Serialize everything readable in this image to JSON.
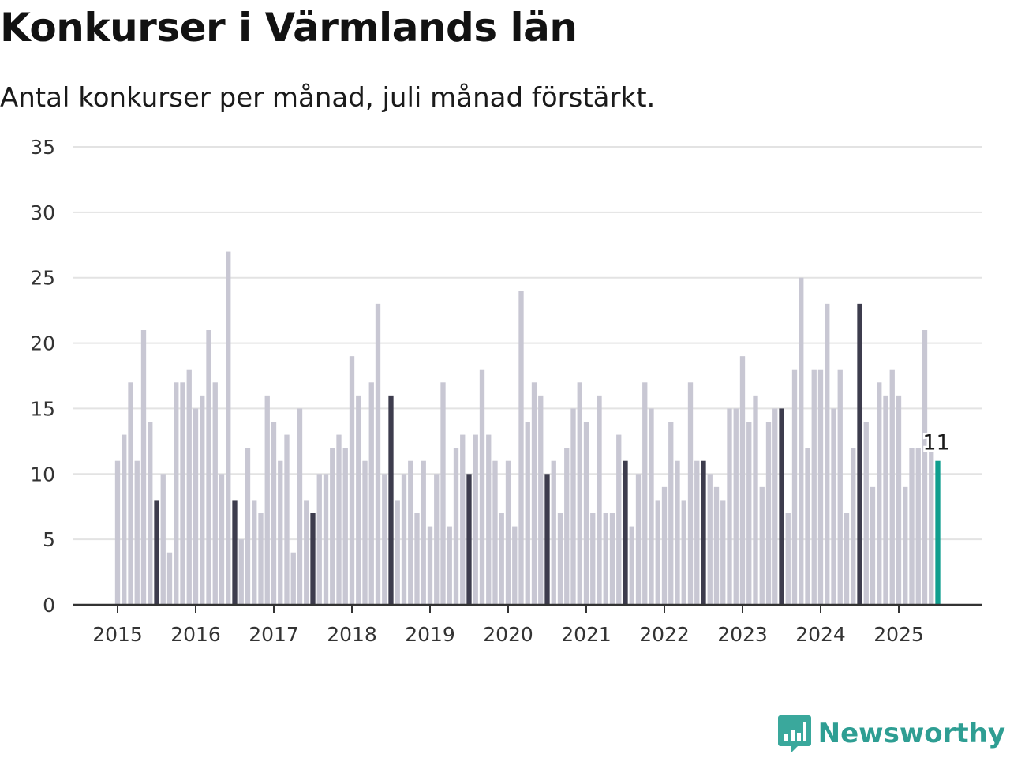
{
  "title": "Konkurser i Värmlands län",
  "subtitle": "Antal konkurser per månad, juli månad förstärkt.",
  "brand": {
    "name": "Newsworthy",
    "icon": "chart-bubble-icon"
  },
  "colors": {
    "normal": "#c8c7d3",
    "july": "#3d3c4d",
    "latest": "#0f9e8e",
    "grid": "#e3e3e3",
    "axis": "#333333"
  },
  "chart_data": {
    "type": "bar",
    "start": "2015-01",
    "ylim": [
      0,
      35
    ],
    "yticks": [
      "0",
      "5",
      "10",
      "15",
      "20",
      "25",
      "30",
      "35"
    ],
    "xticks": [
      "2015",
      "2016",
      "2017",
      "2018",
      "2019",
      "2020",
      "2021",
      "2022",
      "2023",
      "2024",
      "2025"
    ],
    "highlight_label": "11",
    "values": [
      11,
      13,
      17,
      11,
      21,
      14,
      8,
      10,
      4,
      17,
      17,
      18,
      15,
      16,
      21,
      17,
      10,
      27,
      8,
      5,
      12,
      8,
      7,
      16,
      14,
      11,
      13,
      4,
      15,
      8,
      7,
      10,
      10,
      12,
      13,
      12,
      19,
      16,
      11,
      17,
      23,
      10,
      16,
      8,
      10,
      11,
      7,
      11,
      6,
      10,
      17,
      6,
      12,
      13,
      10,
      13,
      18,
      13,
      11,
      7,
      11,
      6,
      24,
      14,
      17,
      16,
      10,
      11,
      7,
      12,
      15,
      17,
      14,
      7,
      16,
      7,
      7,
      13,
      11,
      6,
      10,
      17,
      15,
      8,
      9,
      14,
      11,
      8,
      17,
      11,
      11,
      10,
      9,
      8,
      15,
      15,
      19,
      14,
      16,
      9,
      14,
      15,
      15,
      7,
      18,
      25,
      12,
      18,
      18,
      23,
      15,
      18,
      7,
      12,
      23,
      14,
      9,
      17,
      16,
      18,
      16,
      9,
      12,
      12,
      21,
      12,
      11
    ]
  }
}
